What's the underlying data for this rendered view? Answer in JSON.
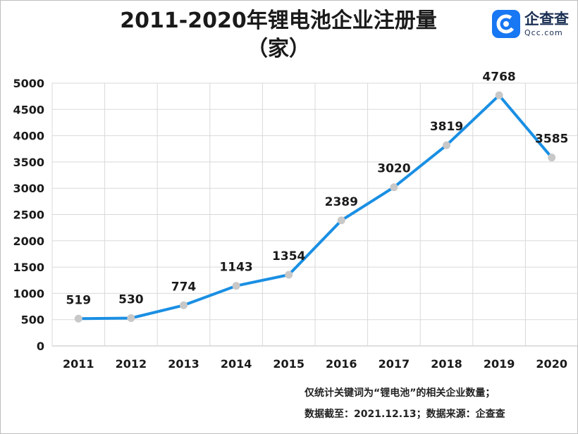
{
  "title": {
    "line1": "2011-2020年锂电池企业注册量",
    "line2": "（家）"
  },
  "logo": {
    "name": "企查查",
    "domain": "Qcc.com",
    "icon": "qcc-logo-icon",
    "color": "#1877f2"
  },
  "footnote": {
    "line1": "仅统计关键词为“锂电池”的相关企业数量；",
    "line2": "数据截至：2021.12.13；数据来源：企查查"
  },
  "chart_data": {
    "type": "line",
    "title": "2011-2020年锂电池企业注册量（家）",
    "xlabel": "",
    "ylabel": "",
    "categories": [
      "2011",
      "2012",
      "2013",
      "2014",
      "2015",
      "2016",
      "2017",
      "2018",
      "2019",
      "2020"
    ],
    "series": [
      {
        "values": [
          519,
          530,
          774,
          1143,
          1354,
          2389,
          3020,
          3819,
          4768,
          3585
        ]
      }
    ],
    "ylim": [
      0,
      5000
    ],
    "yticks": [
      0,
      500,
      1000,
      1500,
      2000,
      2500,
      3000,
      3500,
      4000,
      4500,
      5000
    ],
    "grid": true,
    "data_labels": true,
    "line_color": "#1a8fe3",
    "marker_color": "#c8c8c8"
  }
}
